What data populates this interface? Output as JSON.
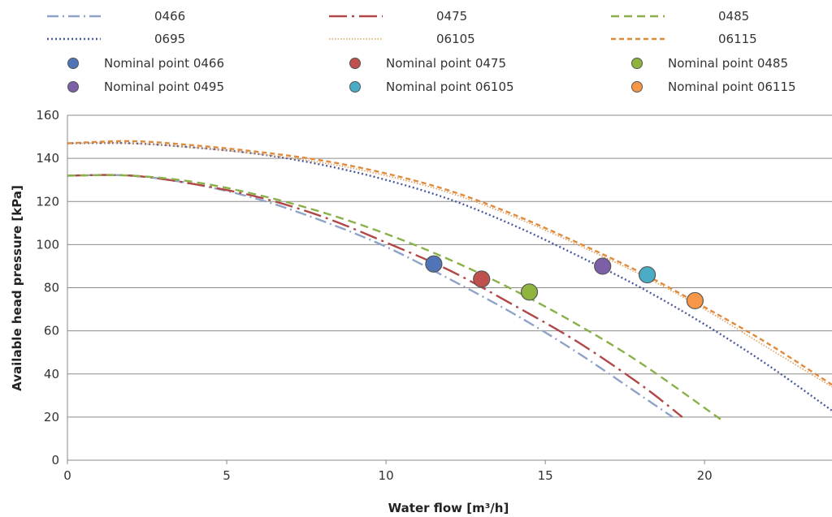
{
  "chart_data": {
    "type": "line",
    "xlabel": "Water flow [m³/h]",
    "ylabel": "Available  head pressure [kPa]",
    "xlim": [
      0,
      24
    ],
    "ylim": [
      0,
      160
    ],
    "x_ticks": [
      "0",
      "5",
      "10",
      "15",
      "20"
    ],
    "y_ticks": [
      "0",
      "20",
      "40",
      "60",
      "80",
      "100",
      "120",
      "140",
      "160"
    ],
    "grid": "horizontal",
    "legend_position": "top",
    "series": [
      {
        "name": "0466",
        "color": "#8fa3c8",
        "dash": "dash-dot",
        "x": [
          0,
          2,
          4,
          6,
          8,
          10,
          12,
          14,
          16,
          18,
          19
        ],
        "y": [
          132,
          132,
          128,
          121,
          111,
          99,
          84,
          68,
          50,
          30,
          20
        ]
      },
      {
        "name": "0475",
        "color": "#b04848",
        "dash": "long-dash-dot",
        "x": [
          0,
          2,
          4,
          6,
          8,
          10,
          12,
          14,
          16,
          18,
          19.3
        ],
        "y": [
          132,
          132,
          128,
          122,
          113,
          101,
          88,
          72,
          55,
          35,
          20
        ]
      },
      {
        "name": "0485",
        "color": "#8ab04a",
        "dash": "dash",
        "x": [
          0,
          2,
          4,
          6,
          8,
          10,
          12,
          14,
          16,
          18,
          20.5
        ],
        "y": [
          132,
          132,
          129,
          123,
          115,
          105,
          93,
          79,
          63,
          45,
          19
        ]
      },
      {
        "name": "0695",
        "color": "#4a5aa0",
        "dash": "dot",
        "x": [
          0,
          2,
          4,
          6,
          8,
          10,
          12,
          14,
          16,
          18,
          20,
          22,
          24
        ],
        "y": [
          147,
          147,
          145,
          142,
          137,
          130,
          121,
          109,
          95,
          80,
          63,
          44,
          23
        ]
      },
      {
        "name": "06105",
        "color": "#e0a060",
        "dash": "fine-dot",
        "x": [
          0,
          2,
          4,
          6,
          8,
          10,
          12,
          14,
          16,
          18,
          20,
          22,
          24
        ],
        "y": [
          147,
          147,
          145,
          142,
          138,
          132,
          124,
          113,
          100,
          86,
          70,
          52,
          34
        ]
      },
      {
        "name": "06115",
        "color": "#e08a3c",
        "dash": "short-dash",
        "x": [
          0,
          2,
          4,
          6,
          8,
          10,
          12,
          14,
          16,
          18,
          20,
          22,
          24
        ],
        "y": [
          147,
          148,
          146,
          143,
          139,
          133,
          125,
          114,
          101,
          87,
          71,
          54,
          35
        ]
      }
    ],
    "points": [
      {
        "name": "Nominal point 0466",
        "x": 11.5,
        "y": 91,
        "color": "#4f74b8"
      },
      {
        "name": "Nominal point 0475",
        "x": 13.0,
        "y": 84,
        "color": "#c0504d"
      },
      {
        "name": "Nominal point 0485",
        "x": 14.5,
        "y": 78,
        "color": "#8eb43e"
      },
      {
        "name": "Nominal point 0495",
        "x": 16.8,
        "y": 90,
        "color": "#7d5fa8"
      },
      {
        "name": "Nominal point 06105",
        "x": 18.2,
        "y": 86,
        "color": "#4bacc6"
      },
      {
        "name": "Nominal point 06115",
        "x": 19.7,
        "y": 74,
        "color": "#f79646"
      }
    ]
  }
}
